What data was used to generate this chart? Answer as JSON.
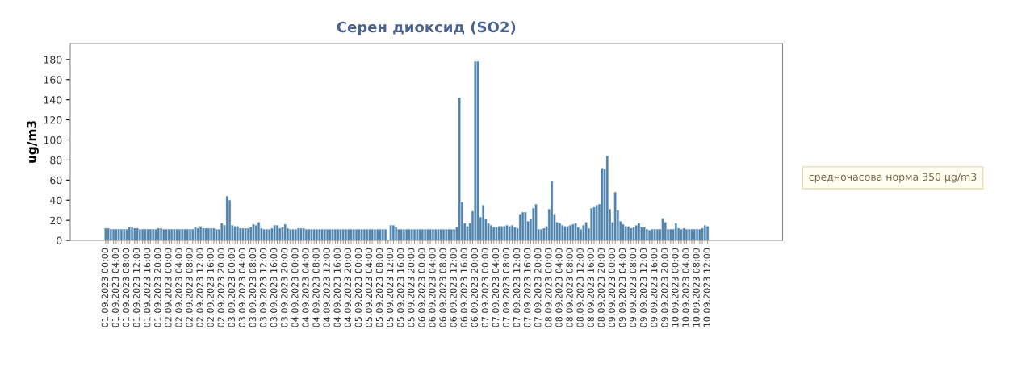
{
  "chart_data": {
    "type": "bar",
    "title": "Серен диоксид (SO2)",
    "ylabel": "ug/m3",
    "annotations": [
      "средночасова норма 350 µg/m3"
    ],
    "categories": [
      "01.09.2023 00:00",
      null,
      null,
      null,
      "01.09.2023 04:00",
      null,
      null,
      null,
      "01.09.2023 08:00",
      null,
      null,
      null,
      "01.09.2023 12:00",
      null,
      null,
      null,
      "01.09.2023 16:00",
      null,
      null,
      null,
      "01.09.2023 20:00",
      null,
      null,
      null,
      "02.09.2023 00:00",
      null,
      null,
      null,
      "02.09.2023 04:00",
      null,
      null,
      null,
      "02.09.2023 08:00",
      null,
      null,
      null,
      "02.09.2023 12:00",
      null,
      null,
      null,
      "02.09.2023 16:00",
      null,
      null,
      null,
      "02.09.2023 20:00",
      null,
      null,
      null,
      "03.09.2023 00:00",
      null,
      null,
      null,
      "03.09.2023 04:00",
      null,
      null,
      null,
      "03.09.2023 08:00",
      null,
      null,
      null,
      "03.09.2023 12:00",
      null,
      null,
      null,
      "03.09.2023 16:00",
      null,
      null,
      null,
      "03.09.2023 20:00",
      null,
      null,
      null,
      "04.09.2023 00:00",
      null,
      null,
      null,
      "04.09.2023 04:00",
      null,
      null,
      null,
      "04.09.2023 08:00",
      null,
      null,
      null,
      "04.09.2023 12:00",
      null,
      null,
      null,
      "04.09.2023 16:00",
      null,
      null,
      null,
      "04.09.2023 20:00",
      null,
      null,
      null,
      "05.09.2023 00:00",
      null,
      null,
      null,
      "05.09.2023 04:00",
      null,
      null,
      null,
      "05.09.2023 08:00",
      null,
      null,
      null,
      "05.09.2023 12:00",
      null,
      null,
      null,
      "05.09.2023 16:00",
      null,
      null,
      null,
      "05.09.2023 20:00",
      null,
      null,
      null,
      "06.09.2023 00:00",
      null,
      null,
      null,
      "06.09.2023 04:00",
      null,
      null,
      null,
      "06.09.2023 08:00",
      null,
      null,
      null,
      "06.09.2023 12:00",
      null,
      null,
      null,
      "06.09.2023 16:00",
      null,
      null,
      null,
      "06.09.2023 20:00",
      null,
      null,
      null,
      "07.09.2023 00:00",
      null,
      null,
      null,
      "07.09.2023 04:00",
      null,
      null,
      null,
      "07.09.2023 08:00",
      null,
      null,
      null,
      "07.09.2023 12:00",
      null,
      null,
      null,
      "07.09.2023 16:00",
      null,
      null,
      null,
      "07.09.2023 20:00",
      null,
      null,
      null,
      "08.09.2023 00:00",
      null,
      null,
      null,
      "08.09.2023 04:00",
      null,
      null,
      null,
      "08.09.2023 08:00",
      null,
      null,
      null,
      "08.09.2023 12:00",
      null,
      null,
      null,
      "08.09.2023 16:00",
      null,
      null,
      null,
      "08.09.2023 20:00",
      null,
      null,
      null,
      "09.09.2023 00:00",
      null,
      null,
      null,
      "09.09.2023 04:00",
      null,
      null,
      null,
      "09.09.2023 08:00",
      null,
      null,
      null,
      "09.09.2023 12:00",
      null,
      null,
      null,
      "09.09.2023 16:00",
      null,
      null,
      null,
      "09.09.2023 20:00",
      null,
      null,
      null,
      "10.09.2023 00:00",
      null,
      null,
      null,
      "10.09.2023 04:00",
      null,
      null,
      null,
      "10.09.2023 08:00",
      null,
      null,
      null,
      "10.09.2023 12:00"
    ],
    "values": [
      12,
      12,
      11,
      11,
      11,
      11,
      11,
      11,
      11,
      13,
      13,
      12,
      12,
      11,
      11,
      11,
      11,
      11,
      11,
      11,
      12,
      12,
      11,
      11,
      11,
      11,
      11,
      11,
      11,
      11,
      11,
      11,
      11,
      11,
      13,
      12,
      14,
      12,
      12,
      12,
      12,
      12,
      11,
      11,
      17,
      15,
      44,
      40,
      15,
      14,
      14,
      12,
      12,
      12,
      12,
      13,
      16,
      15,
      18,
      12,
      11,
      11,
      11,
      12,
      15,
      15,
      12,
      13,
      16,
      12,
      11,
      11,
      11,
      12,
      12,
      12,
      11,
      11,
      11,
      11,
      11,
      11,
      11,
      11,
      11,
      11,
      11,
      11,
      11,
      11,
      11,
      11,
      11,
      11,
      11,
      11,
      11,
      11,
      11,
      11,
      11,
      11,
      11,
      11,
      11,
      11,
      11,
      null,
      15,
      15,
      13,
      11,
      11,
      11,
      11,
      11,
      11,
      11,
      11,
      11,
      11,
      11,
      11,
      11,
      11,
      11,
      11,
      11,
      11,
      11,
      11,
      11,
      11,
      13,
      142,
      38,
      17,
      14,
      17,
      29,
      178,
      178,
      23,
      35,
      21,
      17,
      15,
      13,
      13,
      14,
      14,
      14,
      15,
      14,
      15,
      13,
      12,
      26,
      28,
      28,
      19,
      21,
      32,
      36,
      11,
      11,
      12,
      14,
      31,
      59,
      26,
      18,
      17,
      15,
      14,
      14,
      15,
      16,
      17,
      13,
      11,
      15,
      18,
      12,
      32,
      33,
      35,
      36,
      72,
      71,
      84,
      31,
      18,
      48,
      30,
      19,
      16,
      14,
      14,
      12,
      13,
      15,
      17,
      13,
      13,
      11,
      10,
      11,
      11,
      11,
      11,
      22,
      18,
      11,
      11,
      11,
      17,
      12,
      11,
      12,
      11,
      11,
      11,
      11,
      11,
      11,
      12,
      15,
      14
    ],
    "color": "#4f81a8",
    "ylim": [
      0,
      196
    ],
    "yticks": [
      0,
      20,
      40,
      60,
      80,
      100,
      120,
      140,
      160,
      180
    ],
    "grid": false,
    "legend": false
  }
}
